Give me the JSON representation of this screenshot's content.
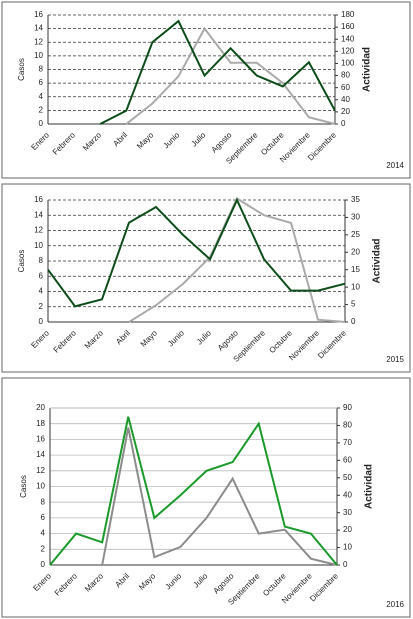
{
  "chart_data": [
    {
      "type": "line",
      "label": "2014",
      "ylabel": "Casos",
      "y2label": "Actividad",
      "y2label_color": "#1a7a1a",
      "grid": "dashed",
      "categories": [
        "Enero",
        "Febrero",
        "Marzo",
        "Abril",
        "Mayo",
        "Junio",
        "Julio",
        "Agosto",
        "Septiembre",
        "Octubre",
        "Noviembre",
        "Diciembre"
      ],
      "ylim": [
        0,
        16
      ],
      "yticks": [
        0,
        2,
        4,
        6,
        8,
        10,
        12,
        14,
        16
      ],
      "y2lim": [
        0,
        180
      ],
      "y2ticks": [
        0,
        20,
        40,
        60,
        80,
        100,
        120,
        140,
        160,
        180
      ],
      "series": [
        {
          "color": "#aaaaaa",
          "values": [
            null,
            null,
            null,
            0,
            3,
            7,
            14,
            9,
            9,
            6,
            1,
            0
          ]
        },
        {
          "color": "#0d4d1a",
          "axis": "y2",
          "values": [
            null,
            null,
            0,
            22,
            135,
            170,
            80,
            125,
            80,
            62,
            102,
            22
          ]
        }
      ]
    },
    {
      "type": "line",
      "label": "2015",
      "ylabel": "Casos",
      "y2label": "Actividad",
      "y2label_color": "#222222",
      "grid": "dashed",
      "categories": [
        "Enero",
        "Febrero",
        "Marzo",
        "Abril",
        "Mayo",
        "Junio",
        "Julio",
        "Agosto",
        "Septiembre",
        "Octubre",
        "Noviembre",
        "Diciembre"
      ],
      "ylim": [
        0,
        16
      ],
      "yticks": [
        0,
        2,
        4,
        6,
        8,
        10,
        12,
        14,
        16
      ],
      "y2lim": [
        0,
        35
      ],
      "y2ticks": [
        0,
        5,
        10,
        15,
        20,
        25,
        30,
        35
      ],
      "series": [
        {
          "color": "#aaaaaa",
          "values": [
            null,
            null,
            null,
            0,
            2.2,
            5,
            8.5,
            16.2,
            14,
            13,
            0.3,
            0
          ]
        },
        {
          "color": "#0d4d1a",
          "axis": "y2",
          "values": [
            15,
            4.5,
            6.5,
            28.5,
            33,
            25,
            18,
            35,
            18,
            9,
            9,
            11
          ]
        }
      ]
    },
    {
      "type": "line",
      "label": "2016",
      "ylabel": "Casos",
      "y2label": "Actividad",
      "y2label_color": "#1a9a2a",
      "grid": "solid",
      "categories": [
        "Enero",
        "Febrero",
        "Marzo",
        "Abril",
        "Mayo",
        "Junio",
        "Julio",
        "Agosto",
        "Septiembre",
        "Octubre",
        "Noviembre",
        "Diciembre"
      ],
      "ylim": [
        0,
        20
      ],
      "yticks": [
        0,
        2,
        4,
        6,
        8,
        10,
        12,
        14,
        16,
        18,
        20
      ],
      "y2lim": [
        0,
        90
      ],
      "y2ticks": [
        0,
        10,
        20,
        30,
        40,
        50,
        60,
        70,
        80,
        90
      ],
      "series": [
        {
          "color": "#8c8c8c",
          "values": [
            null,
            null,
            0,
            17.5,
            1,
            2.3,
            6,
            11,
            4,
            4.5,
            0.8,
            0
          ]
        },
        {
          "color": "#1a9a2a",
          "axis": "y2",
          "values": [
            0,
            18,
            13,
            85,
            27,
            40,
            54,
            59,
            81,
            22,
            18,
            0
          ]
        }
      ]
    }
  ]
}
